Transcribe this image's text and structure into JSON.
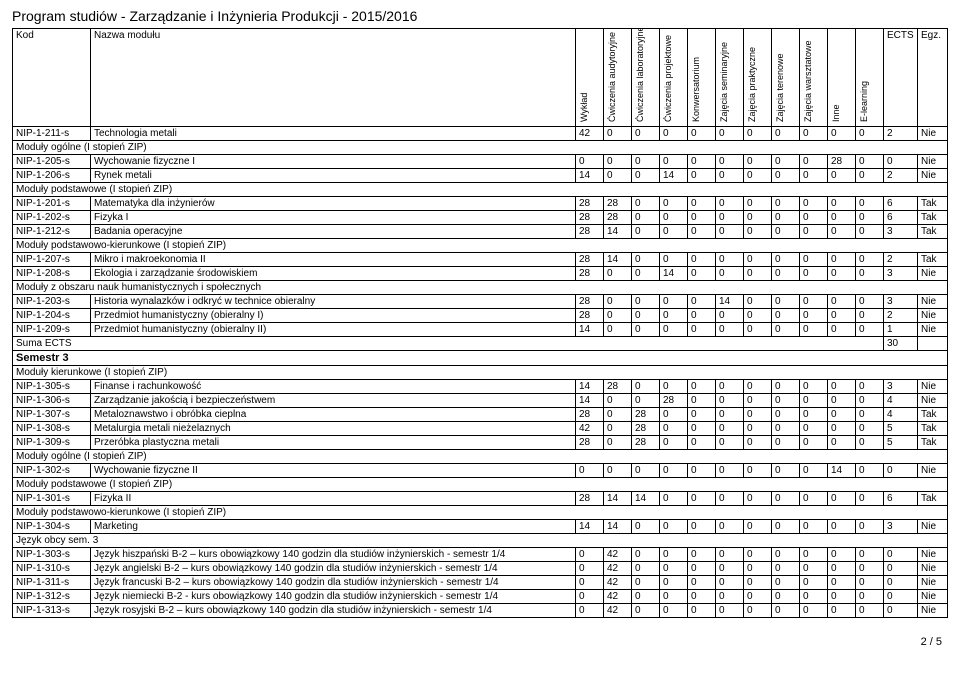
{
  "title": "Program studiów - Zarządzanie i Inżynieria Produkcji - 2015/2016",
  "footer": "2 / 5",
  "columns": {
    "kod": "Kod",
    "nazwa": "Nazwa modułu",
    "c": [
      "Wykład",
      "Ćwiczenia audytoryjne",
      "Ćwiczenia laboratoryjne",
      "Ćwiczenia projektowe",
      "Konwersatorium",
      "Zajęcia seminaryjne",
      "Zajęcia praktyczne",
      "Zajęcia terenowe",
      "Zajęcia warsztatowe",
      "Inne",
      "E-learning"
    ],
    "ects": "ECTS",
    "egz": "Egz."
  },
  "rows": [
    {
      "type": "data",
      "kod": "NIP-1-211-s",
      "nazwa": "Technologia metali",
      "v": [
        42,
        0,
        0,
        0,
        0,
        0,
        0,
        0,
        0,
        0,
        0
      ],
      "ects": "2",
      "egz": "Nie"
    },
    {
      "type": "section",
      "label": "Moduły ogólne (I stopień ZIP)"
    },
    {
      "type": "data",
      "kod": "NIP-1-205-s",
      "nazwa": "Wychowanie fizyczne I",
      "v": [
        0,
        0,
        0,
        0,
        0,
        0,
        0,
        0,
        0,
        28,
        0
      ],
      "ects": "0",
      "egz": "Nie"
    },
    {
      "type": "data",
      "kod": "NIP-1-206-s",
      "nazwa": "Rynek metali",
      "v": [
        14,
        0,
        0,
        14,
        0,
        0,
        0,
        0,
        0,
        0,
        0
      ],
      "ects": "2",
      "egz": "Nie"
    },
    {
      "type": "section",
      "label": "Moduły podstawowe (I stopień ZIP)"
    },
    {
      "type": "data",
      "kod": "NIP-1-201-s",
      "nazwa": "Matematyka dla inżynierów",
      "v": [
        28,
        28,
        0,
        0,
        0,
        0,
        0,
        0,
        0,
        0,
        0
      ],
      "ects": "6",
      "egz": "Tak"
    },
    {
      "type": "data",
      "kod": "NIP-1-202-s",
      "nazwa": "Fizyka I",
      "v": [
        28,
        28,
        0,
        0,
        0,
        0,
        0,
        0,
        0,
        0,
        0
      ],
      "ects": "6",
      "egz": "Tak"
    },
    {
      "type": "data",
      "kod": "NIP-1-212-s",
      "nazwa": "Badania operacyjne",
      "v": [
        28,
        14,
        0,
        0,
        0,
        0,
        0,
        0,
        0,
        0,
        0
      ],
      "ects": "3",
      "egz": "Tak"
    },
    {
      "type": "section",
      "label": "Moduły podstawowo-kierunkowe (I stopień ZIP)"
    },
    {
      "type": "data",
      "kod": "NIP-1-207-s",
      "nazwa": "Mikro i makroekonomia II",
      "v": [
        28,
        14,
        0,
        0,
        0,
        0,
        0,
        0,
        0,
        0,
        0
      ],
      "ects": "2",
      "egz": "Tak"
    },
    {
      "type": "data",
      "kod": "NIP-1-208-s",
      "nazwa": "Ekologia i zarządzanie środowiskiem",
      "v": [
        28,
        0,
        0,
        14,
        0,
        0,
        0,
        0,
        0,
        0,
        0
      ],
      "ects": "3",
      "egz": "Nie"
    },
    {
      "type": "section",
      "label": "Moduły z obszaru nauk humanistycznych i społecznych"
    },
    {
      "type": "data",
      "kod": "NIP-1-203-s",
      "nazwa": "Historia wynalazków i odkryć w technice obieralny",
      "v": [
        28,
        0,
        0,
        0,
        0,
        14,
        0,
        0,
        0,
        0,
        0
      ],
      "ects": "3",
      "egz": "Nie"
    },
    {
      "type": "data",
      "kod": "NIP-1-204-s",
      "nazwa": "Przedmiot humanistyczny (obieralny I)",
      "v": [
        28,
        0,
        0,
        0,
        0,
        0,
        0,
        0,
        0,
        0,
        0
      ],
      "ects": "2",
      "egz": "Nie"
    },
    {
      "type": "data",
      "kod": "NIP-1-209-s",
      "nazwa": "Przedmiot humanistyczny (obieralny II)",
      "v": [
        14,
        0,
        0,
        0,
        0,
        0,
        0,
        0,
        0,
        0,
        0
      ],
      "ects": "1",
      "egz": "Nie"
    },
    {
      "type": "sum",
      "label": "Suma ECTS",
      "ects": "30"
    },
    {
      "type": "semester",
      "label": "Semestr 3"
    },
    {
      "type": "section",
      "label": "Moduły kierunkowe (I stopień ZIP)"
    },
    {
      "type": "data",
      "kod": "NIP-1-305-s",
      "nazwa": "Finanse i rachunkowość",
      "v": [
        14,
        28,
        0,
        0,
        0,
        0,
        0,
        0,
        0,
        0,
        0
      ],
      "ects": "3",
      "egz": "Nie"
    },
    {
      "type": "data",
      "kod": "NIP-1-306-s",
      "nazwa": "Zarządzanie jakością i bezpieczeństwem",
      "v": [
        14,
        0,
        0,
        28,
        0,
        0,
        0,
        0,
        0,
        0,
        0
      ],
      "ects": "4",
      "egz": "Nie"
    },
    {
      "type": "data",
      "kod": "NIP-1-307-s",
      "nazwa": "Metaloznawstwo i obróbka cieplna",
      "v": [
        28,
        0,
        28,
        0,
        0,
        0,
        0,
        0,
        0,
        0,
        0
      ],
      "ects": "4",
      "egz": "Tak"
    },
    {
      "type": "data",
      "kod": "NIP-1-308-s",
      "nazwa": "Metalurgia metali nieżelaznych",
      "v": [
        42,
        0,
        28,
        0,
        0,
        0,
        0,
        0,
        0,
        0,
        0
      ],
      "ects": "5",
      "egz": "Tak"
    },
    {
      "type": "data",
      "kod": "NIP-1-309-s",
      "nazwa": "Przeróbka plastyczna metali",
      "v": [
        28,
        0,
        28,
        0,
        0,
        0,
        0,
        0,
        0,
        0,
        0
      ],
      "ects": "5",
      "egz": "Tak"
    },
    {
      "type": "section",
      "label": "Moduły ogólne (I stopień ZIP)"
    },
    {
      "type": "data",
      "kod": "NIP-1-302-s",
      "nazwa": "Wychowanie fizyczne II",
      "v": [
        0,
        0,
        0,
        0,
        0,
        0,
        0,
        0,
        0,
        14,
        0
      ],
      "ects": "0",
      "egz": "Nie"
    },
    {
      "type": "section",
      "label": "Moduły podstawowe (I stopień ZIP)"
    },
    {
      "type": "data",
      "kod": "NIP-1-301-s",
      "nazwa": "Fizyka II",
      "v": [
        28,
        14,
        14,
        0,
        0,
        0,
        0,
        0,
        0,
        0,
        0
      ],
      "ects": "6",
      "egz": "Tak"
    },
    {
      "type": "section",
      "label": "Moduły podstawowo-kierunkowe (I stopień ZIP)"
    },
    {
      "type": "data",
      "kod": "NIP-1-304-s",
      "nazwa": "Marketing",
      "v": [
        14,
        14,
        0,
        0,
        0,
        0,
        0,
        0,
        0,
        0,
        0
      ],
      "ects": "3",
      "egz": "Nie"
    },
    {
      "type": "section",
      "label": "Język obcy sem. 3"
    },
    {
      "type": "data",
      "kod": "NIP-1-303-s",
      "nazwa": "Język hiszpański B-2 – kurs obowiązkowy 140 godzin dla studiów inżynierskich - semestr 1/4",
      "v": [
        0,
        42,
        0,
        0,
        0,
        0,
        0,
        0,
        0,
        0,
        0
      ],
      "ects": "0",
      "egz": "Nie"
    },
    {
      "type": "data",
      "kod": "NIP-1-310-s",
      "nazwa": "Język angielski B-2 – kurs obowiązkowy 140 godzin dla studiów inżynierskich - semestr 1/4",
      "v": [
        0,
        42,
        0,
        0,
        0,
        0,
        0,
        0,
        0,
        0,
        0
      ],
      "ects": "0",
      "egz": "Nie"
    },
    {
      "type": "data",
      "kod": "NIP-1-311-s",
      "nazwa": "Język francuski B-2 – kurs obowiązkowy 140 godzin dla studiów inżynierskich - semestr 1/4",
      "v": [
        0,
        42,
        0,
        0,
        0,
        0,
        0,
        0,
        0,
        0,
        0
      ],
      "ects": "0",
      "egz": "Nie"
    },
    {
      "type": "data",
      "kod": "NIP-1-312-s",
      "nazwa": "Język niemiecki B-2 - kurs obowiązkowy 140 godzin dla studiów inżynierskich - semestr 1/4",
      "v": [
        0,
        42,
        0,
        0,
        0,
        0,
        0,
        0,
        0,
        0,
        0
      ],
      "ects": "0",
      "egz": "Nie"
    },
    {
      "type": "data",
      "kod": "NIP-1-313-s",
      "nazwa": "Język rosyjski B-2 – kurs obowiązkowy 140 godzin dla studiów inżynierskich - semestr 1/4",
      "v": [
        0,
        42,
        0,
        0,
        0,
        0,
        0,
        0,
        0,
        0,
        0
      ],
      "ects": "0",
      "egz": "Nie"
    }
  ]
}
